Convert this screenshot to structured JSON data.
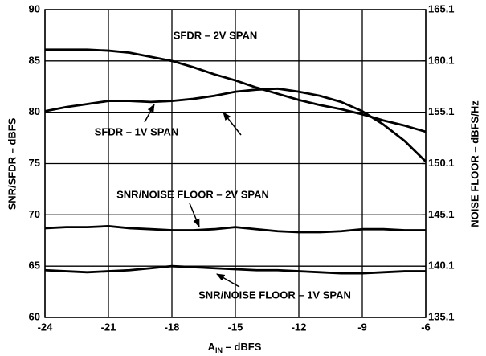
{
  "chart_data": {
    "type": "line",
    "xlabel": [
      "A",
      "IN",
      " – dBFS"
    ],
    "ylabel": "SNR/SFDR – dBFS",
    "y2label": "NOISE FLOOR – dBFS/Hz",
    "annotations": [
      "SFDR – 2V SPAN",
      "SFDR – 1V SPAN",
      "SNR/NOISE FLOOR – 2V SPAN",
      "SNR/NOISE FLOOR – 1V SPAN"
    ],
    "x": [
      -24,
      -23,
      -22,
      -21,
      -20,
      -19,
      -18,
      -17,
      -16,
      -15,
      -14,
      -13,
      -12,
      -11,
      -10,
      -9,
      -8,
      -7,
      -6
    ],
    "series": [
      {
        "name": "SFDR – 2V SPAN",
        "color": "#000000",
        "values": [
          86.1,
          86.1,
          86.1,
          86.0,
          85.8,
          85.4,
          85.0,
          84.4,
          83.7,
          83.1,
          82.4,
          81.8,
          81.2,
          80.7,
          80.3,
          79.8,
          79.2,
          78.7,
          78.1
        ]
      },
      {
        "name": "SFDR – 1V SPAN",
        "color": "#000000",
        "values": [
          80.1,
          80.5,
          80.8,
          81.1,
          81.1,
          81.0,
          81.1,
          81.3,
          81.6,
          82.0,
          82.2,
          82.3,
          82.0,
          81.6,
          81.0,
          80.1,
          78.8,
          77.2,
          75.2
        ]
      },
      {
        "name": "SNR/NOISE FLOOR – 2V SPAN",
        "color": "#000000",
        "values": [
          68.7,
          68.8,
          68.8,
          68.9,
          68.7,
          68.6,
          68.5,
          68.5,
          68.6,
          68.8,
          68.6,
          68.4,
          68.3,
          68.3,
          68.4,
          68.6,
          68.6,
          68.5,
          68.5
        ]
      },
      {
        "name": "SNR/NOISE FLOOR – 1V SPAN",
        "color": "#000000",
        "values": [
          64.6,
          64.5,
          64.4,
          64.5,
          64.6,
          64.8,
          65.0,
          64.9,
          64.8,
          64.7,
          64.6,
          64.6,
          64.5,
          64.4,
          64.3,
          64.3,
          64.4,
          64.5,
          64.5
        ]
      }
    ],
    "xlim": [
      -24,
      -6
    ],
    "xticks": [
      -24,
      -21,
      -18,
      -15,
      -12,
      -9,
      -6
    ],
    "ylim": [
      60,
      90
    ],
    "yticks": [
      60,
      65,
      70,
      75,
      80,
      85,
      90
    ],
    "y2lim": [
      135.1,
      165.1
    ],
    "y2ticks": [
      135.1,
      140.1,
      145.1,
      150.1,
      155.1,
      160.1,
      165.1
    ],
    "grid": true
  }
}
